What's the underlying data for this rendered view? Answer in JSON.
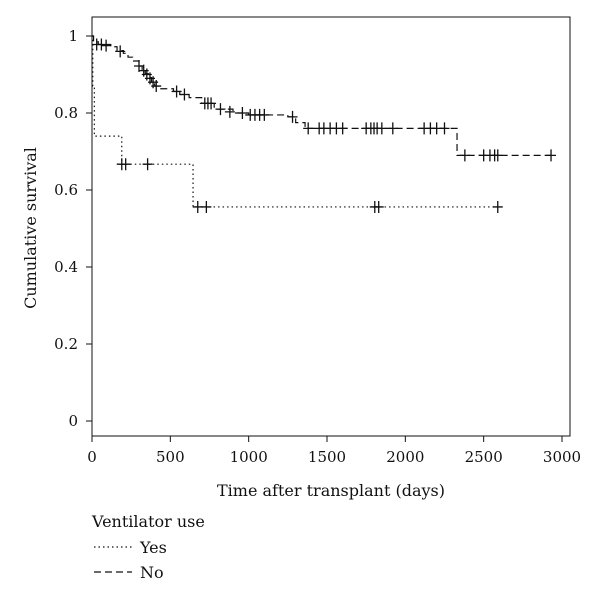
{
  "chart_data": {
    "type": "line",
    "title": "",
    "xlabel": "Time after transplant (days)",
    "ylabel": "Cumulative survival",
    "xlim": [
      0,
      3000
    ],
    "ylim": [
      0,
      1
    ],
    "x_ticks": [
      "0",
      "500",
      "1000",
      "1500",
      "2000",
      "2500",
      "3000"
    ],
    "y_ticks": [
      "0",
      "0.2",
      "0.4",
      "0.6",
      "0.8",
      "1"
    ],
    "grid": false,
    "legend": {
      "title": "Ventilator use",
      "placement": "bottom-left",
      "entries": [
        "Yes",
        "No"
      ]
    },
    "series": [
      {
        "name": "Yes",
        "style": "dotted",
        "steps": [
          [
            0,
            1.0
          ],
          [
            5,
            0.87
          ],
          [
            15,
            0.74
          ],
          [
            190,
            0.667
          ],
          [
            645,
            0.556
          ],
          [
            2600,
            0.556
          ]
        ],
        "censored": [
          [
            190,
            0.667
          ],
          [
            215,
            0.667
          ],
          [
            355,
            0.667
          ],
          [
            675,
            0.556
          ],
          [
            730,
            0.556
          ],
          [
            1805,
            0.556
          ],
          [
            1830,
            0.556
          ],
          [
            2590,
            0.556
          ]
        ]
      },
      {
        "name": "No",
        "style": "dashed",
        "steps": [
          [
            0,
            1.0
          ],
          [
            10,
            0.985
          ],
          [
            40,
            0.978
          ],
          [
            120,
            0.972
          ],
          [
            160,
            0.962
          ],
          [
            200,
            0.955
          ],
          [
            230,
            0.945
          ],
          [
            260,
            0.935
          ],
          [
            300,
            0.922
          ],
          [
            320,
            0.912
          ],
          [
            340,
            0.902
          ],
          [
            360,
            0.892
          ],
          [
            380,
            0.88
          ],
          [
            400,
            0.87
          ],
          [
            430,
            0.863
          ],
          [
            520,
            0.856
          ],
          [
            560,
            0.848
          ],
          [
            620,
            0.84
          ],
          [
            700,
            0.825
          ],
          [
            780,
            0.81
          ],
          [
            900,
            0.8
          ],
          [
            1000,
            0.795
          ],
          [
            1250,
            0.79
          ],
          [
            1300,
            0.775
          ],
          [
            1360,
            0.76
          ],
          [
            2330,
            0.69
          ],
          [
            2950,
            0.69
          ]
        ],
        "censored": [
          [
            30,
            0.978
          ],
          [
            60,
            0.978
          ],
          [
            90,
            0.975
          ],
          [
            180,
            0.96
          ],
          [
            300,
            0.922
          ],
          [
            330,
            0.91
          ],
          [
            350,
            0.9
          ],
          [
            370,
            0.89
          ],
          [
            390,
            0.88
          ],
          [
            410,
            0.87
          ],
          [
            540,
            0.856
          ],
          [
            590,
            0.848
          ],
          [
            720,
            0.825
          ],
          [
            740,
            0.825
          ],
          [
            760,
            0.825
          ],
          [
            820,
            0.81
          ],
          [
            880,
            0.803
          ],
          [
            960,
            0.8
          ],
          [
            1010,
            0.795
          ],
          [
            1040,
            0.795
          ],
          [
            1070,
            0.795
          ],
          [
            1100,
            0.795
          ],
          [
            1280,
            0.79
          ],
          [
            1380,
            0.76
          ],
          [
            1450,
            0.76
          ],
          [
            1480,
            0.76
          ],
          [
            1520,
            0.76
          ],
          [
            1560,
            0.76
          ],
          [
            1600,
            0.76
          ],
          [
            1750,
            0.76
          ],
          [
            1780,
            0.76
          ],
          [
            1800,
            0.76
          ],
          [
            1820,
            0.76
          ],
          [
            1850,
            0.76
          ],
          [
            1920,
            0.76
          ],
          [
            2120,
            0.76
          ],
          [
            2160,
            0.76
          ],
          [
            2200,
            0.76
          ],
          [
            2250,
            0.76
          ],
          [
            2380,
            0.69
          ],
          [
            2500,
            0.69
          ],
          [
            2540,
            0.69
          ],
          [
            2570,
            0.69
          ],
          [
            2590,
            0.69
          ],
          [
            2930,
            0.69
          ]
        ]
      }
    ]
  }
}
